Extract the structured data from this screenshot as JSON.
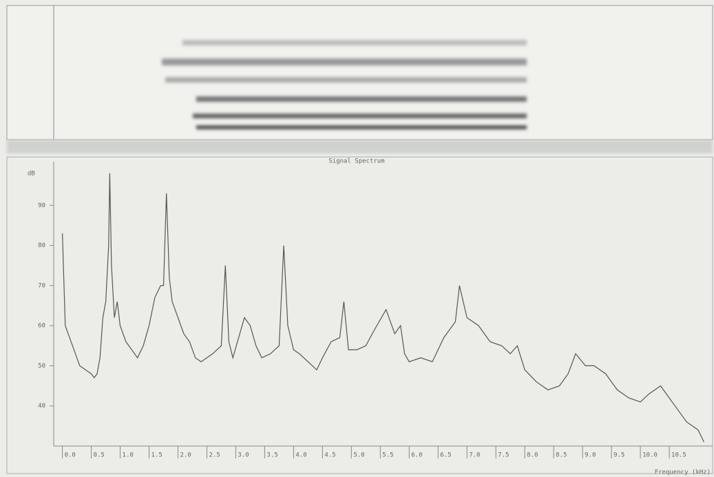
{
  "chart_data": {
    "type": "line",
    "title": "Signal Spectrum",
    "x_label": "Frequency (kHz)",
    "y_label": "dB",
    "color": "#555555",
    "x": [
      0.0,
      0.05,
      0.1,
      0.2,
      0.3,
      0.4,
      0.5,
      0.55,
      0.6,
      0.65,
      0.7,
      0.75,
      0.8,
      0.82,
      0.85,
      0.9,
      0.95,
      1.0,
      1.1,
      1.2,
      1.3,
      1.4,
      1.5,
      1.6,
      1.7,
      1.75,
      1.8,
      1.85,
      1.9,
      2.0,
      2.1,
      2.2,
      2.3,
      2.4,
      2.5,
      2.6,
      2.75,
      2.82,
      2.88,
      2.95,
      3.05,
      3.15,
      3.25,
      3.35,
      3.45,
      3.6,
      3.75,
      3.83,
      3.9,
      4.0,
      4.1,
      4.25,
      4.4,
      4.5,
      4.65,
      4.8,
      4.87,
      4.95,
      5.1,
      5.25,
      5.4,
      5.6,
      5.75,
      5.85,
      5.92,
      6.0,
      6.2,
      6.4,
      6.6,
      6.8,
      6.87,
      7.0,
      7.2,
      7.4,
      7.6,
      7.75,
      7.87,
      8.0,
      8.2,
      8.4,
      8.6,
      8.75,
      8.88,
      9.05,
      9.2,
      9.4,
      9.6,
      9.8,
      10.0,
      10.15,
      10.35,
      10.5,
      10.6,
      10.8,
      11.0,
      11.1
    ],
    "values": [
      83,
      60,
      58,
      54,
      50,
      49,
      48,
      47,
      48,
      52,
      62,
      66,
      80,
      98,
      75,
      62,
      66,
      60,
      56,
      54,
      52,
      55,
      60,
      67,
      70,
      70,
      93,
      72,
      66,
      62,
      58,
      56,
      52,
      51,
      52,
      53,
      55,
      75,
      56,
      52,
      57,
      62,
      60,
      55,
      52,
      53,
      55,
      80,
      60,
      54,
      53,
      51,
      49,
      52,
      56,
      57,
      66,
      54,
      54,
      55,
      59,
      64,
      58,
      60,
      53,
      51,
      52,
      51,
      57,
      61,
      70,
      62,
      60,
      56,
      55,
      53,
      55,
      49,
      46,
      44,
      45,
      48,
      53,
      50,
      50,
      48,
      44,
      42,
      41,
      43,
      45,
      42,
      40,
      36,
      34,
      31
    ],
    "xlim": [
      -0.15,
      11.25
    ],
    "ylim": [
      30,
      100
    ],
    "xticks": [
      {
        "value": 0,
        "label": "0.0"
      },
      {
        "value": 0.5,
        "label": "0.5"
      },
      {
        "value": 1,
        "label": "1.0"
      },
      {
        "value": 1.5,
        "label": "1.5"
      },
      {
        "value": 2,
        "label": "2.0"
      },
      {
        "value": 2.5,
        "label": "2.5"
      },
      {
        "value": 3,
        "label": "3.0"
      },
      {
        "value": 3.5,
        "label": "3.5"
      },
      {
        "value": 4,
        "label": "4.0"
      },
      {
        "value": 4.5,
        "label": "4.5"
      },
      {
        "value": 5,
        "label": "5.0"
      },
      {
        "value": 5.5,
        "label": "5.5"
      },
      {
        "value": 6,
        "label": "6.0"
      },
      {
        "value": 6.5,
        "label": "6.5"
      },
      {
        "value": 7,
        "label": "7.0"
      },
      {
        "value": 7.5,
        "label": "7.5"
      },
      {
        "value": 8,
        "label": "8.0"
      },
      {
        "value": 8.5,
        "label": "8.5"
      },
      {
        "value": 9,
        "label": "9.0"
      },
      {
        "value": 9.5,
        "label": "9.5"
      },
      {
        "value": 10,
        "label": "10.0"
      },
      {
        "value": 10.5,
        "label": "10.5"
      }
    ],
    "yticks": [
      40,
      50,
      60,
      70,
      80,
      90
    ]
  }
}
